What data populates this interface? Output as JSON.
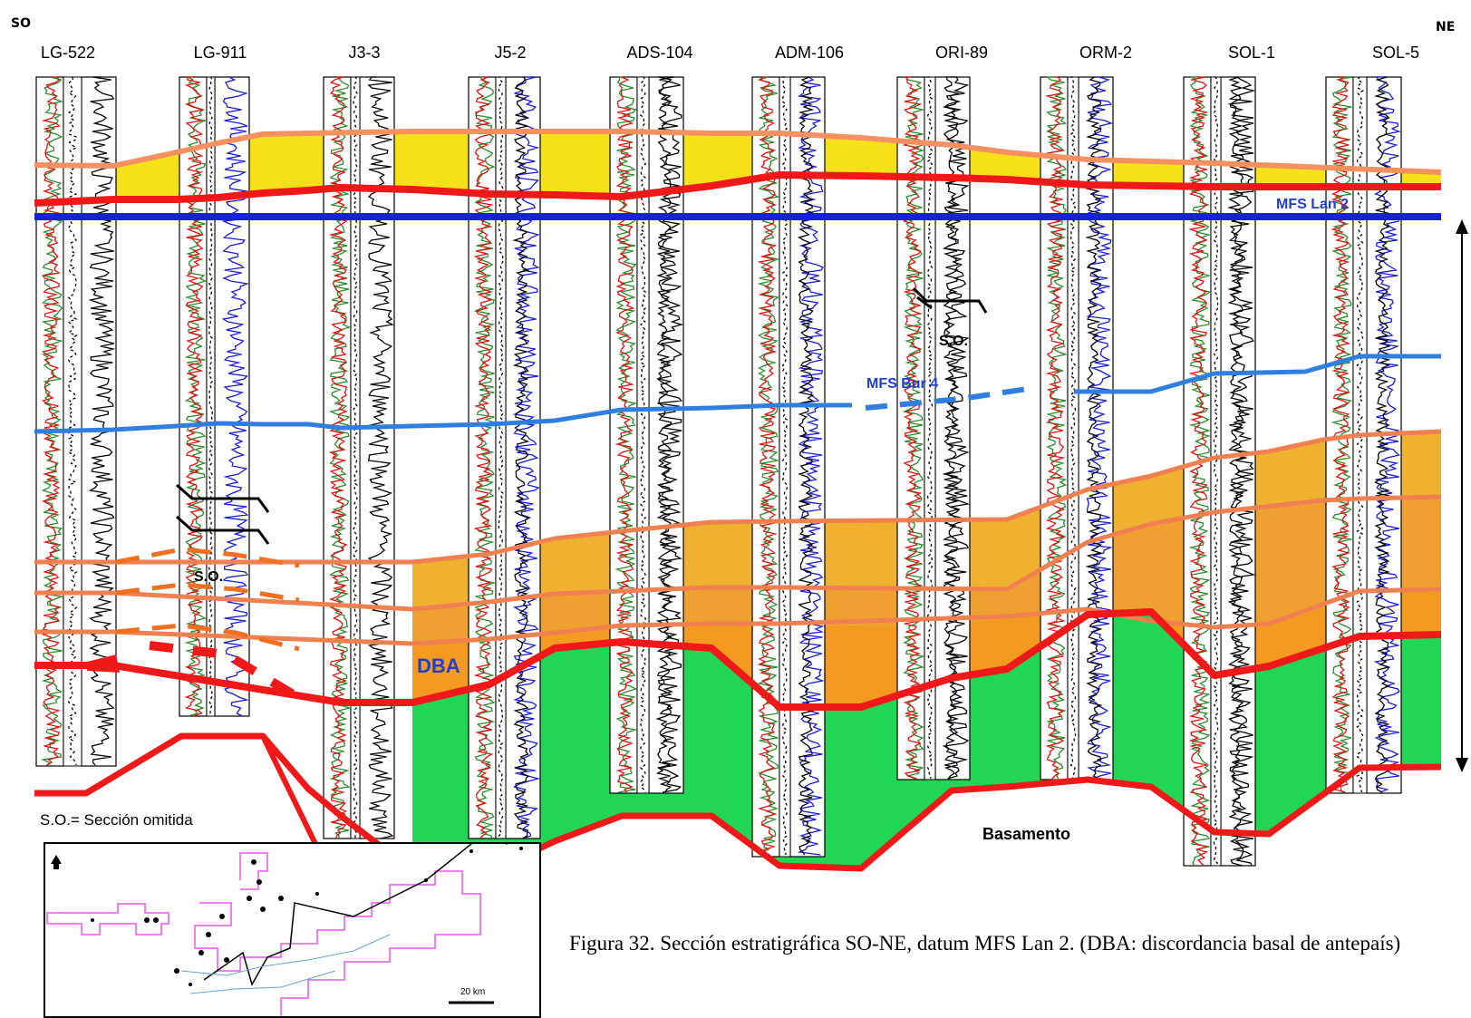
{
  "directions": {
    "left": "SO",
    "right": "NE"
  },
  "wells": [
    "LG-522",
    "LG-911",
    "J3-3",
    "J5-2",
    "ADS-104",
    "ADM-106",
    "ORI-89",
    "ORM-2",
    "SOL-1",
    "SOL-5"
  ],
  "horizons": {
    "mfs_lan2": "MFS Lan 2",
    "mfs_bur4": "MFS Bur 4",
    "dba": "DBA"
  },
  "section_omitted": "S.O.",
  "legend_text": "S.O.= Sección omitida",
  "basement": "Basamento",
  "scale_bar": "20 km",
  "caption": "Figura 32. Sección estratigráfica SO-NE, datum MFS Lan 2. (DBA: discordancia basal de antepaís)",
  "colors": {
    "yellow_fill": "#f7e21a",
    "orange_fill": "#f0a830",
    "green_fill": "#22d655",
    "red_line": "#f01818",
    "salmon_line": "#f59060",
    "blue_line": "#1520e0",
    "light_blue_line": "#2f7fe0",
    "inset_polygon": "#ee55ee"
  }
}
